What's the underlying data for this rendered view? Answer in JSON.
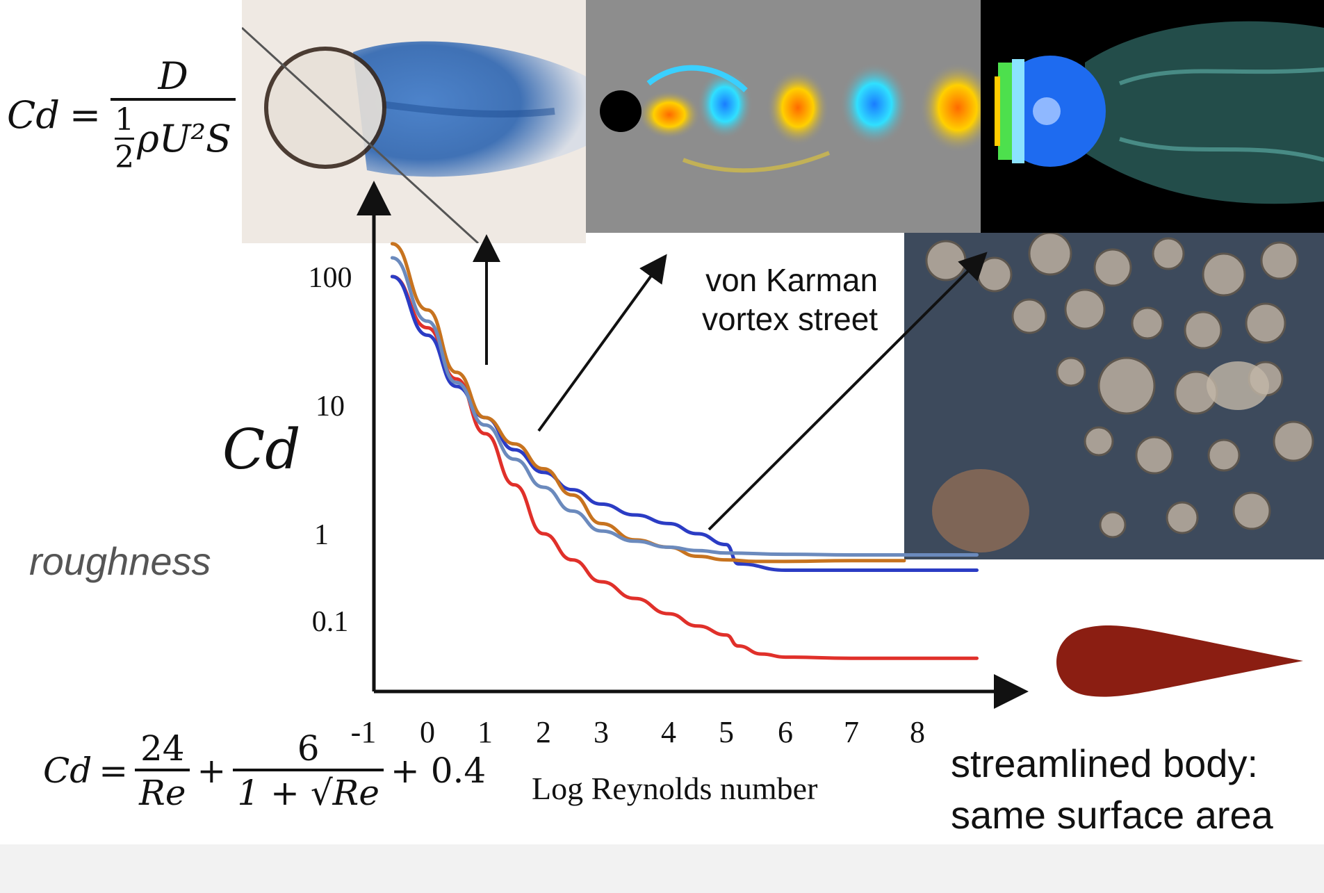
{
  "formulas": {
    "drag_def": {
      "lhs": "Cd",
      "equals": "=",
      "numerator": "D",
      "den_half_num": "1",
      "den_half_den": "2",
      "den_rest": "ρU²S"
    },
    "drag_approx": {
      "lhs": "Cd",
      "equals": "=",
      "t1_num": "24",
      "t1_den": "Re",
      "plus1": "+",
      "t2_num": "6",
      "t2_den": "1 + √Re",
      "plus2": "+ 0.4"
    }
  },
  "labels": {
    "y_axis": "Cd",
    "x_axis": "Log Reynolds number",
    "von_karman": [
      "von Karman",
      "vortex street"
    ],
    "roughness": "roughness",
    "streamlined": [
      "streamlined body:",
      "same surface area"
    ]
  },
  "chart_data": {
    "type": "line",
    "xlabel": "Log Reynolds number",
    "ylabel": "Cd",
    "x_ticks": [
      "-1",
      "0",
      "1",
      "2",
      "3",
      "4",
      "5",
      "6",
      "7",
      "8"
    ],
    "y_ticks": [
      "100",
      "10",
      "1",
      "0.1"
    ],
    "series": [
      {
        "color": "#e0302a",
        "x": [
          -0.55,
          0,
          0.5,
          1,
          1.5,
          2,
          2.5,
          3,
          3.5,
          4,
          4.5,
          5,
          5.2,
          5.6,
          6,
          7,
          8,
          8.9
        ],
        "y": [
          100,
          40,
          16,
          6,
          2.4,
          1.0,
          0.5,
          0.28,
          0.18,
          0.12,
          0.08,
          0.055,
          0.035,
          0.025,
          0.022,
          0.021,
          0.021,
          0.021
        ]
      },
      {
        "color": "#2b3cc4",
        "x": [
          -0.55,
          0,
          0.5,
          1,
          1.5,
          2,
          2.5,
          3,
          3.5,
          4,
          4.5,
          5,
          5.2,
          6,
          7,
          8,
          8.9
        ],
        "y": [
          100,
          35,
          14,
          8,
          4.5,
          3.0,
          2.2,
          1.7,
          1.4,
          1.2,
          1.0,
          0.75,
          0.45,
          0.38,
          0.38,
          0.38,
          0.38
        ]
      },
      {
        "color": "#c7731f",
        "x": [
          -0.55,
          0,
          0.5,
          1,
          1.5,
          2,
          2.5,
          3,
          3.5,
          4,
          4.5,
          5,
          5.5,
          6,
          7,
          7.8
        ],
        "y": [
          180,
          55,
          18,
          8,
          5,
          3.2,
          2.0,
          1.2,
          0.85,
          0.7,
          0.55,
          0.5,
          0.48,
          0.48,
          0.49,
          0.49
        ]
      },
      {
        "color": "#6b8abd",
        "x": [
          -0.55,
          0,
          0.5,
          1,
          1.5,
          2,
          2.5,
          3,
          3.5,
          4,
          4.5,
          5,
          6,
          7,
          8,
          8.9
        ],
        "y": [
          140,
          45,
          15,
          7,
          3.8,
          2.3,
          1.5,
          1.05,
          0.82,
          0.7,
          0.64,
          0.6,
          0.58,
          0.57,
          0.57,
          0.57
        ]
      }
    ]
  },
  "colors": {
    "streamlined_body": "#8b1e12",
    "axis": "#111111"
  }
}
